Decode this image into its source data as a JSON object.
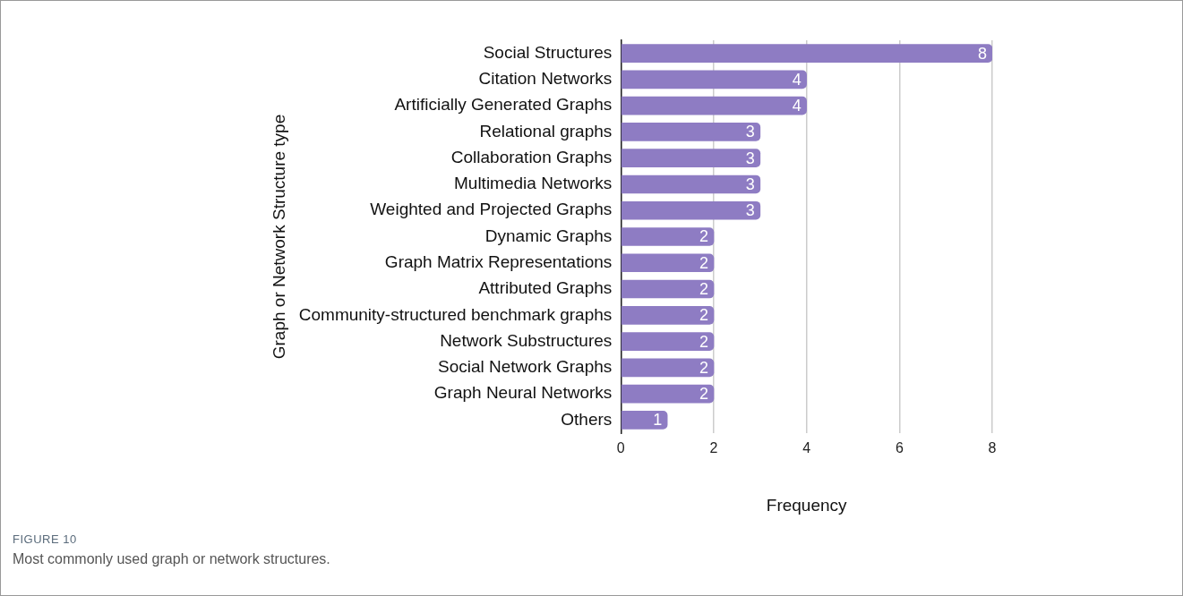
{
  "chart_data": {
    "type": "bar",
    "orientation": "horizontal",
    "xlabel": "Frequency",
    "ylabel": "Graph or Network Structure type",
    "categories": [
      "Social Structures",
      "Citation Networks",
      "Artificially Generated Graphs",
      "Relational graphs",
      "Collaboration Graphs",
      "Multimedia Networks",
      "Weighted and Projected Graphs",
      "Dynamic Graphs",
      "Graph Matrix Representations",
      "Attributed Graphs",
      "Community-structured benchmark graphs",
      "Network Substructures",
      "Social Network Graphs",
      "Graph Neural Networks",
      "Others"
    ],
    "values": [
      8,
      4,
      4,
      3,
      3,
      3,
      3,
      2,
      2,
      2,
      2,
      2,
      2,
      2,
      1
    ],
    "color": "#8e7cc3",
    "xlim": [
      0,
      8
    ],
    "xticks": [
      0,
      2,
      4,
      6,
      8
    ],
    "grid": "x",
    "data_labels": true,
    "legend": false,
    "annotations": [
      "FIGURE 10",
      "Most commonly used graph or network structures."
    ]
  }
}
